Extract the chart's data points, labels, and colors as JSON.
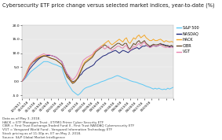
{
  "title": "Cybersecurity ETF price change versus selected market indices, year-to-date (%)",
  "title_fontsize": 4.8,
  "ylim": [
    -6,
    20
  ],
  "yticks": [
    -5.0,
    0.0,
    5.0,
    10.0,
    15.0,
    20.0
  ],
  "footnote_lines": [
    "Data as of May 3, 2018.",
    "HACK = ETF Managers Trust - ETFMG Prime Cyber Security ETF",
    "CIBR = First Trust Exchange-Traded Fund II - First Trust NASDAQ Cybersecurity ETF",
    "VGT = Vanguard World Fund - Vanguard Information Technology ETF",
    "Stock pricing as of 11:30p.m. ET on May 2, 2018.",
    "Source: S&P Global Market Intelligence"
  ],
  "footnote_fontsize": 3.0,
  "legend_labels": [
    "S&P 500",
    "NASDAQ",
    "HACK",
    "CIBR",
    "VGT"
  ],
  "legend_colors": [
    "#5bc8f5",
    "#1c2478",
    "#f5a623",
    "#6b4c2a",
    "#e884b0"
  ],
  "background_color": "#ffffff",
  "plot_bg": "#e8e8e8",
  "n_points": 85,
  "sp500": [
    0.0,
    0.5,
    1.2,
    2.0,
    2.8,
    3.5,
    4.0,
    4.5,
    5.0,
    5.5,
    6.0,
    6.5,
    7.0,
    7.0,
    7.0,
    6.8,
    6.5,
    6.2,
    6.0,
    5.8,
    5.5,
    5.2,
    5.0,
    3.0,
    1.0,
    -0.5,
    -1.5,
    -2.5,
    -3.5,
    -4.0,
    -4.5,
    -5.0,
    -4.5,
    -3.8,
    -3.0,
    -2.5,
    -2.2,
    -2.0,
    -1.8,
    -1.5,
    -1.2,
    -1.0,
    -0.8,
    -0.5,
    -0.2,
    0.0,
    0.2,
    0.5,
    0.8,
    1.0,
    1.2,
    1.5,
    1.8,
    2.0,
    1.8,
    1.5,
    1.2,
    1.0,
    0.8,
    0.5,
    0.2,
    0.0,
    -0.2,
    -0.3,
    -0.5,
    -0.8,
    -1.0,
    -1.2,
    -1.5,
    -1.8,
    -2.0,
    -2.2,
    -2.5,
    -2.8,
    -2.5,
    -2.8,
    -2.5,
    -2.8,
    -3.0,
    -2.8,
    -3.0,
    -2.5,
    -2.8,
    -2.5,
    -2.2
  ],
  "nasdaq": [
    0.0,
    0.8,
    1.8,
    3.0,
    4.2,
    5.0,
    5.8,
    6.5,
    7.2,
    7.8,
    8.3,
    8.7,
    9.0,
    9.0,
    9.2,
    9.2,
    9.2,
    9.0,
    8.8,
    8.5,
    8.0,
    7.5,
    7.0,
    5.5,
    4.0,
    2.5,
    1.5,
    0.5,
    -0.2,
    0.0,
    0.5,
    1.0,
    2.0,
    2.5,
    3.5,
    4.0,
    4.5,
    4.8,
    5.2,
    5.5,
    6.0,
    7.0,
    7.5,
    8.0,
    8.5,
    9.0,
    9.2,
    9.5,
    10.0,
    10.2,
    10.5,
    10.8,
    11.0,
    10.5,
    10.0,
    10.5,
    11.0,
    10.8,
    10.5,
    10.2,
    10.8,
    11.2,
    11.5,
    11.8,
    12.0,
    11.5,
    12.0,
    12.5,
    12.5,
    12.8,
    12.5,
    12.2,
    12.5,
    12.8,
    12.5,
    12.5,
    12.8,
    13.0,
    13.2,
    13.0,
    12.8,
    12.5,
    12.2,
    12.5,
    12.2
  ],
  "hack": [
    0.0,
    1.0,
    2.5,
    4.0,
    5.5,
    6.5,
    7.0,
    7.5,
    8.0,
    8.5,
    8.8,
    9.0,
    9.2,
    9.0,
    8.8,
    8.5,
    8.2,
    8.0,
    7.8,
    7.5,
    7.0,
    6.5,
    6.0,
    4.5,
    3.0,
    2.0,
    1.0,
    0.5,
    -0.5,
    -0.2,
    0.5,
    1.5,
    3.0,
    4.5,
    6.0,
    7.0,
    7.5,
    8.0,
    8.5,
    9.0,
    10.0,
    11.0,
    11.5,
    12.0,
    12.5,
    13.0,
    13.5,
    14.0,
    14.5,
    13.5,
    13.0,
    13.5,
    14.0,
    14.5,
    15.0,
    14.5,
    14.0,
    15.0,
    15.5,
    14.0,
    13.5,
    14.5,
    15.5,
    15.0,
    16.0,
    16.5,
    15.5,
    16.0,
    16.5,
    15.5,
    15.0,
    14.5,
    14.5,
    15.0,
    14.5,
    14.5,
    14.8,
    15.0,
    14.5,
    14.0,
    14.5,
    14.2,
    14.0,
    14.2,
    14.0
  ],
  "cibr": [
    0.0,
    0.9,
    2.0,
    3.5,
    5.0,
    6.0,
    6.8,
    7.2,
    7.8,
    8.2,
    8.5,
    8.8,
    9.0,
    9.0,
    8.8,
    8.5,
    8.2,
    8.0,
    7.8,
    7.5,
    7.0,
    6.5,
    6.0,
    4.5,
    3.0,
    1.5,
    0.8,
    0.0,
    -0.8,
    -0.5,
    0.2,
    1.2,
    2.5,
    4.0,
    5.5,
    6.5,
    7.0,
    7.5,
    8.0,
    8.5,
    9.5,
    10.5,
    11.0,
    11.5,
    12.0,
    12.5,
    13.0,
    12.5,
    12.0,
    11.5,
    12.0,
    12.5,
    13.0,
    13.5,
    13.5,
    13.0,
    12.8,
    13.5,
    13.5,
    12.0,
    11.5,
    12.5,
    13.5,
    13.0,
    14.0,
    14.5,
    13.5,
    14.0,
    14.5,
    13.5,
    13.0,
    12.5,
    12.8,
    13.2,
    13.0,
    13.0,
    13.2,
    13.5,
    13.0,
    12.8,
    12.5,
    12.8,
    12.5,
    12.8,
    12.5
  ],
  "vgt": [
    0.0,
    0.8,
    2.0,
    3.5,
    5.0,
    6.2,
    7.2,
    7.8,
    8.5,
    8.8,
    9.2,
    9.5,
    9.8,
    9.5,
    9.5,
    9.5,
    9.2,
    9.0,
    8.8,
    8.5,
    8.0,
    7.5,
    7.0,
    5.5,
    4.0,
    2.8,
    2.0,
    1.2,
    0.5,
    1.0,
    1.8,
    3.0,
    4.5,
    6.0,
    7.5,
    8.0,
    8.5,
    8.8,
    9.2,
    9.5,
    10.5,
    11.0,
    11.5,
    12.0,
    12.5,
    12.0,
    11.5,
    12.0,
    12.5,
    11.5,
    11.0,
    11.5,
    12.0,
    12.5,
    12.5,
    12.0,
    11.8,
    12.5,
    12.8,
    11.5,
    11.0,
    11.5,
    12.5,
    12.0,
    13.0,
    13.5,
    12.5,
    13.5,
    14.0,
    13.0,
    12.5,
    12.0,
    12.2,
    12.8,
    12.5,
    12.5,
    12.8,
    13.0,
    12.5,
    12.2,
    12.0,
    12.2,
    12.0,
    12.2,
    12.0
  ],
  "x_tick_step": 4,
  "x_labels": [
    "12/29/17",
    "01/05/18",
    "01/12/18",
    "01/19/18",
    "01/26/18",
    "02/02/18",
    "02/09/18",
    "02/16/18",
    "02/23/18",
    "03/02/18",
    "03/09/18",
    "03/16/18",
    "03/23/18",
    "03/30/18",
    "04/06/18",
    "04/13/18",
    "04/20/18",
    "04/27/18",
    "05/03/18"
  ]
}
